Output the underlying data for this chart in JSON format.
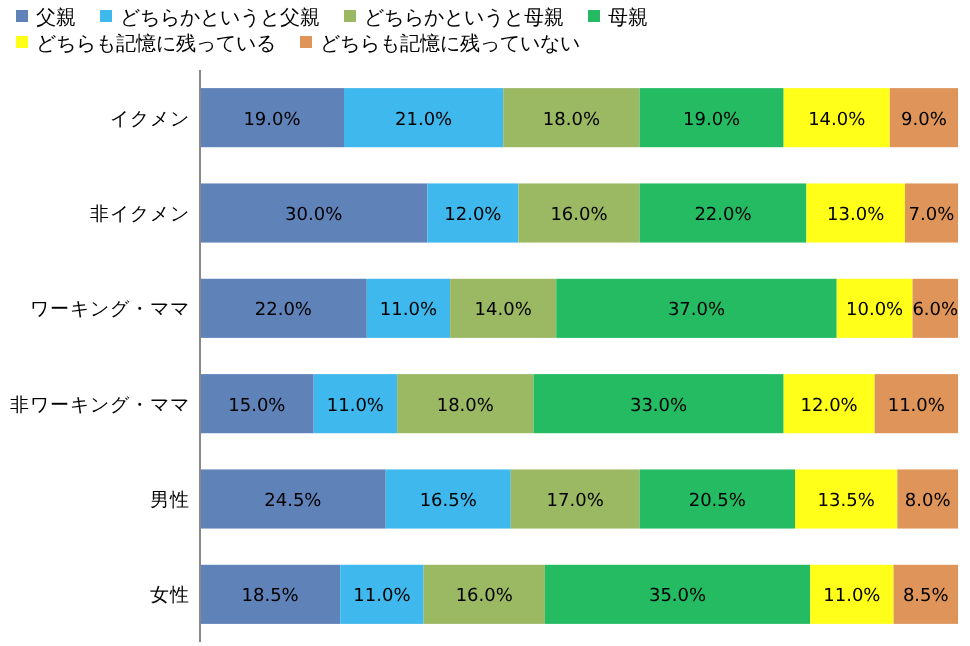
{
  "chart_data": {
    "type": "bar",
    "orientation": "horizontal",
    "stacked": true,
    "legend": "top",
    "categories": [
      "イクメン",
      "非イクメン",
      "ワーキング・ママ",
      "非ワーキング・ママ",
      "男性",
      "女性"
    ],
    "series": [
      {
        "name": "父親",
        "color": "#5f82b9",
        "values": [
          19,
          30,
          22,
          15,
          24.5,
          18.5
        ],
        "value_labels": [
          "19.0%",
          "30.0%",
          "22.0%",
          "15.0%",
          "24.5%",
          "18.5%"
        ]
      },
      {
        "name": "どちらかというと父親",
        "color": "#3fb8ee",
        "values": [
          21,
          12,
          11,
          11,
          16.5,
          11
        ],
        "value_labels": [
          "21.0%",
          "12.0%",
          "11.0%",
          "11.0%",
          "16.5%",
          "11.0%"
        ]
      },
      {
        "name": "どちらかというと母親",
        "color": "#9bb862",
        "values": [
          18,
          16,
          14,
          18,
          17,
          16
        ],
        "value_labels": [
          "18.0%",
          "16.0%",
          "14.0%",
          "18.0%",
          "17.0%",
          "16.0%"
        ]
      },
      {
        "name": "母親",
        "color": "#24bb63",
        "values": [
          19,
          22,
          37,
          33,
          20.5,
          35
        ],
        "value_labels": [
          "19.0%",
          "22.0%",
          "37.0%",
          "33.0%",
          "20.5%",
          "35.0%"
        ]
      },
      {
        "name": "どちらも記憶に残っている",
        "color": "#ffff1a",
        "values": [
          14,
          13,
          10,
          12,
          13.5,
          11
        ],
        "value_labels": [
          "14.0%",
          "13.0%",
          "10.0%",
          "12.0%",
          "13.5%",
          "11.0%"
        ]
      },
      {
        "name": "どちらも記憶に残っていない",
        "color": "#df9459",
        "values": [
          9,
          7,
          6,
          11,
          8,
          8.5
        ],
        "value_labels": [
          "9.0%",
          "7.0%",
          "6.0%",
          "11.0%",
          "8.0%",
          "8.5%"
        ]
      }
    ]
  }
}
